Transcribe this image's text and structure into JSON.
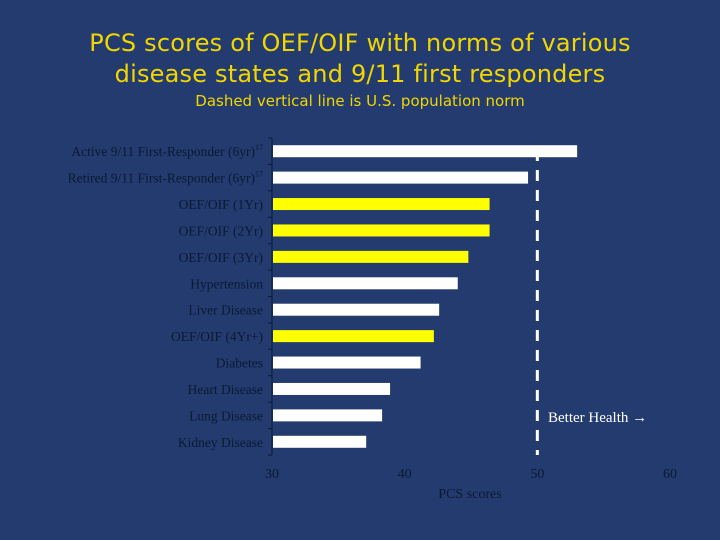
{
  "slide": {
    "title_line1": "PCS scores of OEF/OIF with norms of various",
    "title_line2": "disease states and 9/11 first responders",
    "subtitle": "Dashed vertical line is U.S. population norm"
  },
  "chart_data": {
    "type": "bar",
    "orientation": "horizontal",
    "categories": [
      "Active 9/11 First-Responder (6yr)",
      "Retired 9/11 First-Responder (6yr)",
      "OEF/OIF (1Yr)",
      "OEF/OIF (2Yr)",
      "OEF/OIF (3Yr)",
      "Hypertension",
      "Liver Disease",
      "OEF/OIF (4Yr+)",
      "Diabetes",
      "Heart Disease",
      "Lung Disease",
      "Kidney Disease"
    ],
    "category_superscripts": [
      "17",
      "17",
      "",
      "",
      "",
      "",
      "",
      "",
      "",
      "",
      "",
      ""
    ],
    "values": [
      53.0,
      49.3,
      46.4,
      46.4,
      44.8,
      44.0,
      42.6,
      42.2,
      41.2,
      38.9,
      38.3,
      37.1
    ],
    "highlight": [
      false,
      false,
      true,
      true,
      true,
      false,
      false,
      true,
      false,
      false,
      false,
      false
    ],
    "xlim": [
      30,
      60
    ],
    "xticks": [
      30,
      40,
      50,
      60
    ],
    "xlabel": "PCS scores",
    "ylabel": "",
    "reference_line": {
      "value": 50,
      "style": "dashed"
    },
    "annotation": "Better Health →",
    "colors": {
      "default_bar": "#ffffff",
      "highlight_bar": "#ffff00",
      "reference_line": "#ffffff",
      "title": "#f2d600",
      "background": "#233b6e",
      "axis": "#0b1a33"
    }
  }
}
